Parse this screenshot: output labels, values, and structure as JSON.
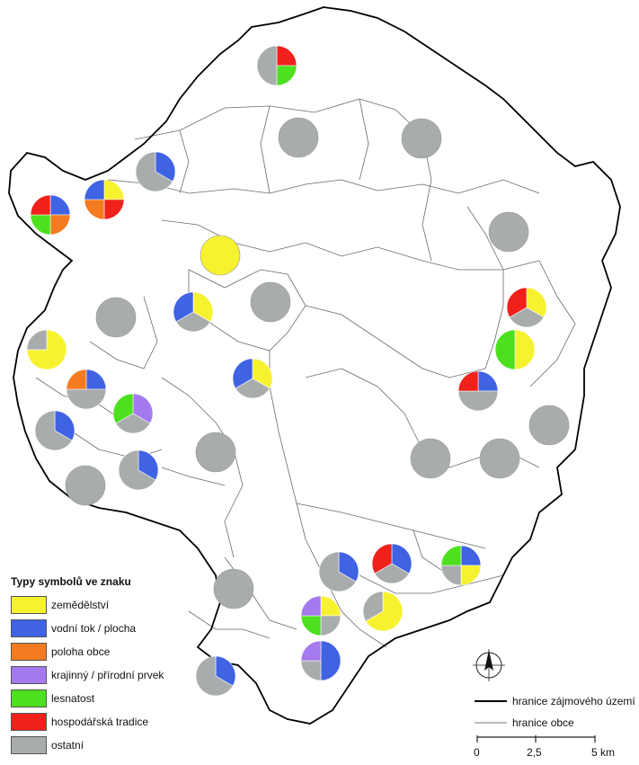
{
  "legend": {
    "title": "Typy symbolů ve znaku",
    "items": [
      {
        "key": "zemedelstvi",
        "label": "zemědělství",
        "color": "#f7f230"
      },
      {
        "key": "voda",
        "label": "vodní tok / plocha",
        "color": "#3f63e3"
      },
      {
        "key": "poloha",
        "label": "poloha obce",
        "color": "#f47b20"
      },
      {
        "key": "krajinny",
        "label": "krajinný / přírodní prvek",
        "color": "#a57aee"
      },
      {
        "key": "lesnatost",
        "label": "lesnatost",
        "color": "#4ce01e"
      },
      {
        "key": "hospodarska",
        "label": "hospodářská tradice",
        "color": "#f0211b"
      },
      {
        "key": "ostatni",
        "label": "ostatní",
        "color": "#a9acad"
      }
    ]
  },
  "line_legend": {
    "boundary_area": "hranice zájmového území",
    "boundary_municipality": "hranice obce"
  },
  "scale": {
    "labels": [
      "0",
      "2,5",
      "5 km"
    ]
  },
  "north_arrow": {
    "label": "N"
  },
  "pies": [
    {
      "id": "p01",
      "shares": {
        "hospodarska": 1,
        "lesnatost": 1,
        "ostatni": 2
      }
    },
    {
      "id": "p02",
      "shares": {
        "ostatni": 1
      }
    },
    {
      "id": "p03",
      "shares": {
        "ostatni": 1
      }
    },
    {
      "id": "p04",
      "shares": {
        "voda": 1,
        "ostatni": 2
      }
    },
    {
      "id": "p05",
      "shares": {
        "zemedelstvi": 1,
        "hospodarska": 1,
        "poloha": 1,
        "voda": 1
      }
    },
    {
      "id": "p06",
      "shares": {
        "voda": 1,
        "poloha": 1,
        "lesnatost": 1,
        "hospodarska": 1
      }
    },
    {
      "id": "p07",
      "shares": {
        "ostatni": 1
      }
    },
    {
      "id": "p08",
      "shares": {
        "zemedelstvi": 1
      }
    },
    {
      "id": "p09",
      "shares": {
        "zemedelstvi": 1,
        "ostatni": 1,
        "voda": 1
      }
    },
    {
      "id": "p10",
      "shares": {
        "ostatni": 1
      }
    },
    {
      "id": "p11",
      "shares": {
        "ostatni": 1
      }
    },
    {
      "id": "p12",
      "shares": {
        "zemedelstvi": 1,
        "ostatni": 1,
        "hospodarska": 1
      }
    },
    {
      "id": "p13",
      "shares": {
        "zemedelstvi": 3,
        "ostatni": 1
      }
    },
    {
      "id": "p14",
      "shares": {
        "zemedelstvi": 1,
        "lesnatost": 1
      }
    },
    {
      "id": "p15",
      "shares": {
        "voda": 1,
        "ostatni": 2,
        "poloha": 1
      }
    },
    {
      "id": "p16",
      "shares": {
        "zemedelstvi": 1,
        "ostatni": 1,
        "voda": 1
      }
    },
    {
      "id": "p17",
      "shares": {
        "voda": 1,
        "ostatni": 2,
        "hospodarska": 1
      }
    },
    {
      "id": "p18",
      "shares": {
        "krajinny": 1,
        "ostatni": 1,
        "lesnatost": 1
      }
    },
    {
      "id": "p19",
      "shares": {
        "voda": 1,
        "ostatni": 2
      }
    },
    {
      "id": "p20",
      "shares": {
        "ostatni": 1
      }
    },
    {
      "id": "p21",
      "shares": {
        "ostatni": 1
      }
    },
    {
      "id": "p22",
      "shares": {
        "voda": 1,
        "ostatni": 2
      }
    },
    {
      "id": "p23",
      "shares": {
        "ostatni": 1
      }
    },
    {
      "id": "p24",
      "shares": {
        "ostatni": 1
      }
    },
    {
      "id": "p25",
      "shares": {
        "ostatni": 1
      }
    },
    {
      "id": "p26",
      "shares": {
        "voda": 1,
        "ostatni": 2
      }
    },
    {
      "id": "p27",
      "shares": {
        "voda": 1,
        "ostatni": 1,
        "hospodarska": 1
      }
    },
    {
      "id": "p28",
      "shares": {
        "voda": 1,
        "zemedelstvi": 1,
        "ostatni": 1,
        "lesnatost": 1
      }
    },
    {
      "id": "p29",
      "shares": {
        "ostatni": 1
      }
    },
    {
      "id": "p30",
      "shares": {
        "zemedelstvi": 1,
        "ostatni": 1,
        "lesnatost": 1,
        "krajinny": 1
      }
    },
    {
      "id": "p31",
      "shares": {
        "zemedelstvi": 2,
        "ostatni": 1
      }
    },
    {
      "id": "p32",
      "shares": {
        "voda": 2,
        "ostatni": 1,
        "krajinny": 1
      }
    },
    {
      "id": "p33",
      "shares": {
        "voda": 1,
        "ostatni": 2
      }
    }
  ]
}
